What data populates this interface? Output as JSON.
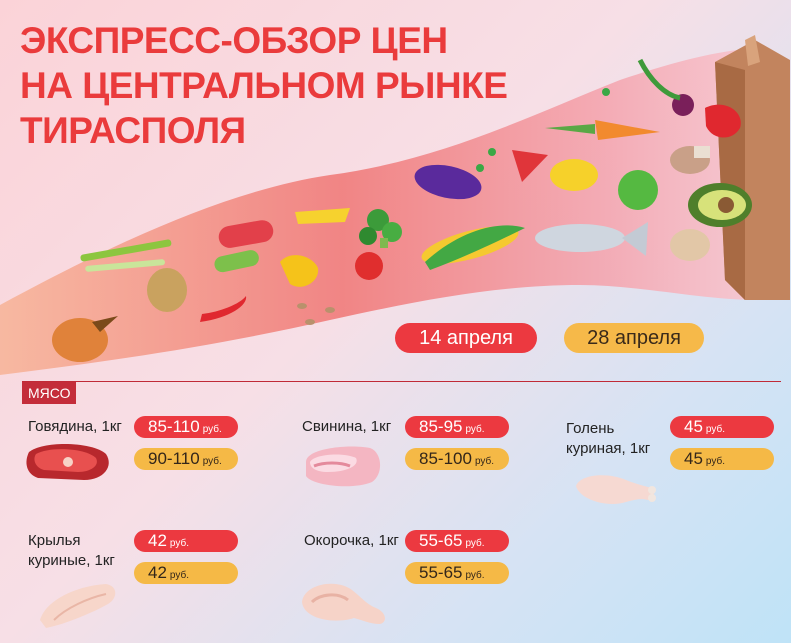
{
  "title": {
    "line1": "ЭКСПРЕСС-ОБЗОР ЦЕН",
    "line2": "НА ЦЕНТРАЛЬНОМ РЫНКЕ",
    "line3": "ТИРАСПОЛЯ"
  },
  "dates": {
    "first": "14 апреля",
    "second": "28 апреля"
  },
  "section": {
    "label": "МЯСО"
  },
  "colors": {
    "first_date": "#ec3940",
    "second_date": "#f5b946",
    "title": "#ea3b3c"
  },
  "items": [
    {
      "name": "Говядина, 1кг",
      "price_first": "85-110",
      "price_second": "90-110",
      "unit": "руб.",
      "icon": "beef-steak-icon"
    },
    {
      "name": "Свинина, 1кг",
      "price_first": "85-95",
      "price_second": "85-100",
      "unit": "руб.",
      "icon": "pork-icon"
    },
    {
      "name_line1": "Голень",
      "name_line2": "куриная, 1кг",
      "price_first": "45",
      "price_second": "45",
      "unit": "руб.",
      "icon": "chicken-drumstick-icon"
    },
    {
      "name_line1": "Крылья",
      "name_line2": "куриные, 1кг",
      "price_first": "42",
      "price_second": "42",
      "unit": "руб.",
      "icon": "chicken-wings-icon"
    },
    {
      "name": "Окорочка, 1кг",
      "price_first": "55-65",
      "price_second": "55-65",
      "unit": "руб.",
      "icon": "chicken-leg-quarter-icon"
    }
  ]
}
